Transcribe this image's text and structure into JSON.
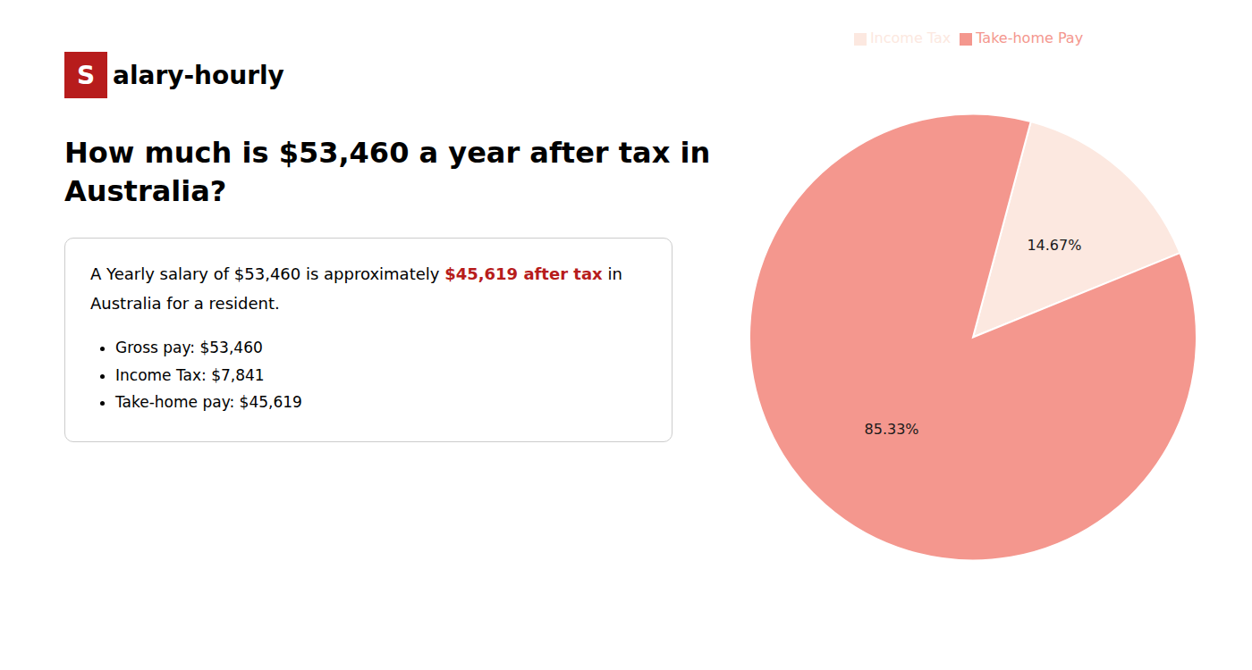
{
  "chart_data": {
    "type": "pie",
    "title": "How much is $53,460 a year after tax in\nAustralia?",
    "annotations": {
      "logo": [
        {
          "text": "S",
          "color": "#b71c1c"
        },
        {
          "text": "alary-hourly"
        }
      ],
      "description": [
        [
          {
            "text": "A Yearly salary of $53,460 is approximately "
          },
          {
            "text": "$45,619 after tax",
            "color": "#b71c1c"
          },
          {
            "text": " in"
          }
        ],
        [
          {
            "text": "Australia for a resident."
          }
        ]
      ],
      "bullets": [
        "Gross pay: $53,460",
        "Income Tax: $7,841",
        "Take-home pay: $45,619"
      ]
    },
    "categories": [
      "Income Tax",
      "Take-home Pay"
    ],
    "values": [
      14.67,
      85.33
    ],
    "value_labels": [
      "14.67%",
      "85.33%"
    ],
    "colors": [
      "#fce8e0",
      "#f4978e"
    ],
    "data_labels": true,
    "legend": "top"
  }
}
